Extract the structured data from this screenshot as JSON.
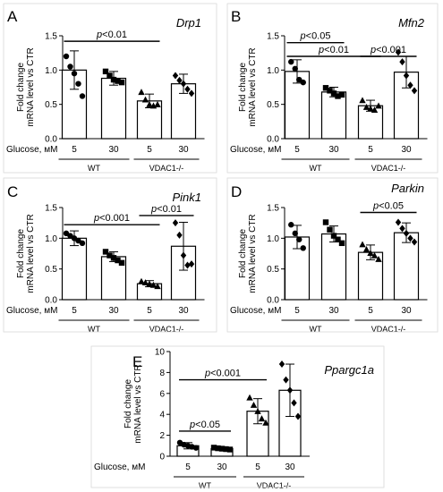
{
  "figure": {
    "ylabel_line1": "Fold change",
    "ylabel_line2": "mRNA level vs CTR",
    "glucose_label": "Glucose, мM"
  },
  "chart_data": [
    {
      "type": "bar",
      "panel_letter": "A",
      "title": "Drp1",
      "categories": [
        "5",
        "30",
        "5",
        "30"
      ],
      "groups": [
        {
          "label": "WT",
          "categories": [
            0,
            1
          ]
        },
        {
          "label": "VDAC1-/-",
          "categories": [
            2,
            3
          ]
        }
      ],
      "values": [
        1.0,
        0.88,
        0.55,
        0.8
      ],
      "errors": [
        0.28,
        0.1,
        0.1,
        0.14
      ],
      "points": [
        [
          1.2,
          1.05,
          0.95,
          0.8,
          0.62
        ],
        [
          0.98,
          0.92,
          0.86,
          0.84,
          0.82
        ],
        [
          0.68,
          0.57,
          0.5,
          0.48,
          0.5
        ],
        [
          0.92,
          0.85,
          0.8,
          0.72,
          0.66
        ]
      ],
      "markers": [
        "circle",
        "square",
        "triangle",
        "diamond"
      ],
      "ylim": [
        0.0,
        1.5
      ],
      "yticks": [
        0.0,
        0.5,
        1.0,
        1.5
      ],
      "ytick_labels": [
        "0.0",
        "0.5",
        "1.0",
        "1.5"
      ],
      "annotations": [
        {
          "text": "p<0.01",
          "from": 0,
          "to": 2,
          "y": 1.42
        }
      ]
    },
    {
      "type": "bar",
      "panel_letter": "B",
      "title": "Mfn2",
      "categories": [
        "5",
        "30",
        "5",
        "30"
      ],
      "groups": [
        {
          "label": "WT",
          "categories": [
            0,
            1
          ]
        },
        {
          "label": "VDAC1-/-",
          "categories": [
            2,
            3
          ]
        }
      ],
      "values": [
        0.98,
        0.68,
        0.48,
        0.97
      ],
      "errors": [
        0.17,
        0.07,
        0.08,
        0.23
      ],
      "points": [
        [
          1.12,
          1.02,
          0.86,
          0.82
        ],
        [
          0.74,
          0.7,
          0.66,
          0.62,
          0.64
        ],
        [
          0.56,
          0.46,
          0.44,
          0.42,
          0.48
        ],
        [
          1.26,
          1.12,
          0.92,
          0.78,
          0.7
        ]
      ],
      "markers": [
        "circle",
        "square",
        "triangle",
        "diamond"
      ],
      "ylim": [
        0.0,
        1.5
      ],
      "yticks": [
        0.0,
        0.5,
        1.0,
        1.5
      ],
      "ytick_labels": [
        "0.0",
        "0.5",
        "1.0",
        "1.5"
      ],
      "annotations": [
        {
          "text": "p<0.05",
          "from": 0,
          "to": 1,
          "y": 1.4
        },
        {
          "text": "p<0.01",
          "from": 0,
          "to": 2,
          "y": 1.2
        },
        {
          "text": "p<0.001",
          "from": 2,
          "to": 3,
          "y": 1.2
        }
      ]
    },
    {
      "type": "bar",
      "panel_letter": "C",
      "title": "Pink1",
      "categories": [
        "5",
        "30",
        "5",
        "30"
      ],
      "groups": [
        {
          "label": "WT",
          "categories": [
            0,
            1
          ]
        },
        {
          "label": "VDAC1-/-",
          "categories": [
            2,
            3
          ]
        }
      ],
      "values": [
        1.0,
        0.7,
        0.26,
        0.87
      ],
      "errors": [
        0.12,
        0.08,
        0.05,
        0.39
      ],
      "points": [
        [
          1.08,
          1.04,
          1.0,
          0.96,
          0.92
        ],
        [
          0.78,
          0.72,
          0.68,
          0.64,
          0.6
        ],
        [
          0.3,
          0.28,
          0.26,
          0.24,
          0.22
        ],
        [
          1.25,
          1.05,
          0.72,
          0.56,
          0.58
        ]
      ],
      "markers": [
        "circle",
        "square",
        "triangle",
        "diamond"
      ],
      "ylim": [
        0.0,
        1.5
      ],
      "yticks": [
        0.0,
        0.5,
        1.0,
        1.5
      ],
      "ytick_labels": [
        "0.0",
        "0.5",
        "1.0",
        "1.5"
      ],
      "annotations": [
        {
          "text": "p<0.001",
          "from": 0,
          "to": 2,
          "y": 1.22
        },
        {
          "text": "p<0.01",
          "from": 2,
          "to": 3,
          "y": 1.37
        }
      ]
    },
    {
      "type": "bar",
      "panel_letter": "D",
      "title": "Parkin",
      "categories": [
        "5",
        "30",
        "5",
        "30"
      ],
      "groups": [
        {
          "label": "WT",
          "categories": [
            0,
            1
          ]
        },
        {
          "label": "VDAC1-/-",
          "categories": [
            2,
            3
          ]
        }
      ],
      "values": [
        1.02,
        1.07,
        0.77,
        1.09
      ],
      "errors": [
        0.19,
        0.13,
        0.12,
        0.16
      ],
      "points": [
        [
          1.22,
          1.08,
          0.98,
          0.84
        ],
        [
          1.26,
          1.14,
          1.04,
          0.98,
          0.92
        ],
        [
          0.9,
          0.82,
          0.76,
          0.72,
          0.66
        ],
        [
          1.26,
          1.16,
          1.08,
          1.0,
          0.94
        ]
      ],
      "markers": [
        "circle",
        "square",
        "triangle",
        "diamond"
      ],
      "ylim": [
        0.0,
        1.5
      ],
      "yticks": [
        0.0,
        0.5,
        1.0,
        1.5
      ],
      "ytick_labels": [
        "0.0",
        "0.5",
        "1.0",
        "1.5"
      ],
      "annotations": [
        {
          "text": "p<0.05",
          "from": 2,
          "to": 3,
          "y": 1.42
        }
      ]
    },
    {
      "type": "bar",
      "panel_letter": "E",
      "title": "Ppargc1a",
      "categories": [
        "5",
        "30",
        "5",
        "30"
      ],
      "groups": [
        {
          "label": "WT",
          "categories": [
            0,
            1
          ]
        },
        {
          "label": "VDAC1-/-",
          "categories": [
            2,
            3
          ]
        }
      ],
      "values": [
        1.0,
        0.72,
        4.3,
        6.3
      ],
      "errors": [
        0.3,
        0.15,
        1.2,
        2.5
      ],
      "points": [
        [
          1.3,
          1.1,
          1.0,
          0.9,
          0.8
        ],
        [
          0.82,
          0.76,
          0.72,
          0.68,
          0.64
        ],
        [
          5.6,
          4.9,
          4.3,
          3.6,
          3.2
        ],
        [
          8.8,
          7.3,
          6.3,
          5.1,
          3.8
        ]
      ],
      "markers": [
        "circle",
        "square",
        "triangle",
        "diamond"
      ],
      "ylim": [
        0,
        10
      ],
      "yticks": [
        0,
        2,
        4,
        6,
        8,
        10
      ],
      "ytick_labels": [
        "0",
        "2",
        "4",
        "6",
        "8",
        "10"
      ],
      "annotations": [
        {
          "text": "p<0.001",
          "from": 0,
          "to": 2,
          "y": 7.3
        },
        {
          "text": "p<0.05",
          "from": 0,
          "to": 1,
          "y": 2.4
        }
      ]
    }
  ]
}
